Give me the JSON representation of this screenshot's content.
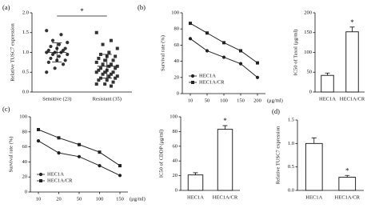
{
  "chart_data": [
    {
      "type": "strip",
      "label": "(a)",
      "ylabel": "Relative TUSC7 expression",
      "categories": [
        "Sensitive (23)",
        "Resistant (35)"
      ],
      "series": [
        {
          "color": "#333333",
          "marker": "circle",
          "values": [
            1.55,
            1.45,
            1.3,
            1.25,
            1.2,
            1.15,
            1.1,
            1.1,
            1.05,
            1.05,
            1.0,
            1.0,
            1.0,
            0.95,
            0.95,
            0.9,
            0.85,
            0.8,
            0.8,
            0.75,
            0.7,
            0.6,
            0.5
          ]
        },
        {
          "color": "#333333",
          "marker": "square",
          "values": [
            1.5,
            1.3,
            1.2,
            1.1,
            1.0,
            0.95,
            0.9,
            0.9,
            0.85,
            0.8,
            0.8,
            0.75,
            0.7,
            0.7,
            0.65,
            0.65,
            0.6,
            0.6,
            0.55,
            0.55,
            0.5,
            0.5,
            0.5,
            0.45,
            0.45,
            0.4,
            0.4,
            0.35,
            0.35,
            0.3,
            0.3,
            0.25,
            0.2,
            0.2,
            0.15
          ]
        }
      ],
      "means": [
        1.0,
        0.65
      ],
      "sd": [
        0.24,
        0.3
      ],
      "ylim": [
        0,
        2
      ],
      "yticks": [
        {
          "value": 0,
          "label": "0.0"
        },
        {
          "value": 0.5,
          "label": "0.5"
        },
        {
          "value": 1,
          "label": "1.0"
        },
        {
          "value": 1.5,
          "label": "1.5"
        },
        {
          "value": 2,
          "label": "2.0"
        }
      ],
      "annotation": "*"
    },
    {
      "type": "line",
      "label": "(b)",
      "ylabel": "Survival rate (%)",
      "xlabel": "(μg/ml)",
      "categories": [
        "10",
        "50",
        "100",
        "150",
        "200"
      ],
      "series": [
        {
          "name": "HEC1A",
          "color": "#222222",
          "marker": "circle",
          "values": [
            68,
            53,
            45,
            37,
            20
          ]
        },
        {
          "name": "HEC1A/CR",
          "color": "#222222",
          "marker": "square",
          "values": [
            87,
            75,
            63,
            53,
            38
          ]
        }
      ],
      "ylim": [
        0,
        100
      ],
      "yticks": [
        0,
        20,
        40,
        60,
        80,
        100
      ],
      "legend": "lower left"
    },
    {
      "type": "bar",
      "ylabel": "IC50 of Taxol (μg/ml)",
      "categories": [
        "HEC1A",
        "HEC1A/CR"
      ],
      "values": [
        42,
        152
      ],
      "errors": [
        6,
        12
      ],
      "color": "#ffffff",
      "ylim": [
        0,
        200
      ],
      "yticks": [
        0,
        50,
        100,
        150,
        200
      ],
      "annotation": "*"
    },
    {
      "type": "line",
      "label": "(c)",
      "ylabel": "Survival rate (%)",
      "xlabel": "(μg/ml)",
      "categories": [
        "10",
        "20",
        "50",
        "100",
        "150"
      ],
      "series": [
        {
          "name": "HEC1A",
          "color": "#222222",
          "marker": "circle",
          "values": [
            68,
            52,
            47,
            35,
            22
          ]
        },
        {
          "name": "HEC1A/CR",
          "color": "#222222",
          "marker": "square",
          "values": [
            83,
            72,
            63,
            53,
            35
          ]
        }
      ],
      "ylim": [
        0,
        100
      ],
      "yticks": [
        0,
        20,
        40,
        60,
        80,
        100
      ],
      "legend": "lower left"
    },
    {
      "type": "bar",
      "ylabel": "IC50 of CDDP (μg/ml)",
      "categories": [
        "HEC1A",
        "HEC1A/CR"
      ],
      "values": [
        21,
        83
      ],
      "errors": [
        3,
        5
      ],
      "color": "#ffffff",
      "ylim": [
        0,
        100
      ],
      "yticks": [
        0,
        20,
        40,
        60,
        80,
        100
      ],
      "annotation": "*"
    },
    {
      "type": "bar",
      "label": "(d)",
      "ylabel": "Relative TUSC7 expression",
      "categories": [
        "HEC1A",
        "HEC1A/CR"
      ],
      "values": [
        1.0,
        0.28
      ],
      "errors": [
        0.12,
        0.04
      ],
      "color": "#ffffff",
      "ylim": [
        0,
        1.5
      ],
      "yticks": [
        {
          "value": 0,
          "label": "0.0"
        },
        {
          "value": 0.5,
          "label": "0.5"
        },
        {
          "value": 1,
          "label": "1.0"
        },
        {
          "value": 1.5,
          "label": "1.5"
        }
      ],
      "annotation": "*"
    }
  ]
}
